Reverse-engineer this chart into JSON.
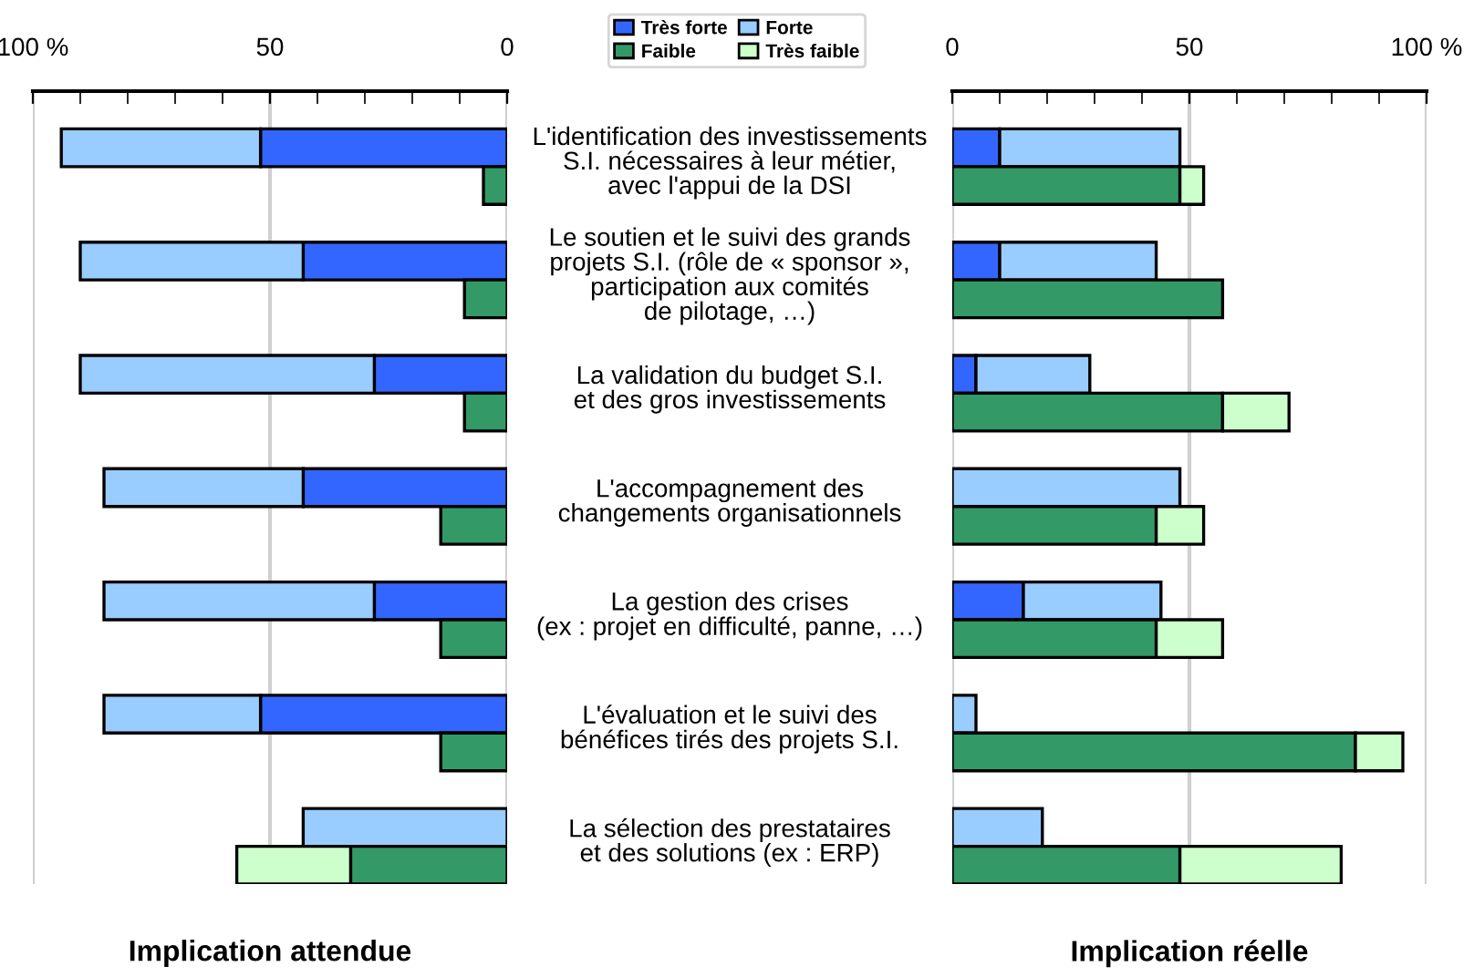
{
  "chart_data": [
    {
      "type": "bar",
      "orientation": "horizontal",
      "stacked": true,
      "xlabel": "Implication attendue",
      "categories": [
        "L'identification des investissements\nS.I. nécessaires à leur métier,\navec l'appui de la DSI",
        null,
        null,
        "Le soutien et le suivi des grands\nprojets S.I. (rôle de « sponsor »,\nparticipation aux comités\nde pilotage, …)",
        null,
        null,
        "La validation du budget S.I.\net des gros investissements",
        null,
        null,
        "L'accompagnement des\nchangements organisationnels",
        null,
        null,
        "La gestion des crises\n(ex : projet en difficulté, panne, …)",
        null,
        null,
        "L'évaluation et le suivi des\nbénéfices tirés des projets S.I.",
        null,
        null,
        "La sélection des prestataires\net des solutions (ex : ERP)",
        null
      ],
      "series": [
        {
          "name": "Très forte",
          "color": "#3366ff",
          "values": [
            52,
            null,
            null,
            43,
            null,
            null,
            28,
            null,
            null,
            43,
            null,
            null,
            28,
            null,
            null,
            52,
            null,
            null,
            null,
            null
          ]
        },
        {
          "name": "Forte",
          "color": "#99ccff",
          "values": [
            42,
            null,
            null,
            47,
            null,
            null,
            62,
            null,
            null,
            42,
            null,
            null,
            57,
            null,
            null,
            33,
            null,
            null,
            43,
            null
          ]
        },
        {
          "name": "Faible",
          "color": "#339966",
          "values": [
            null,
            5,
            null,
            null,
            9,
            null,
            null,
            9,
            null,
            null,
            14,
            null,
            null,
            14,
            null,
            null,
            14,
            null,
            null,
            33
          ]
        },
        {
          "name": "Très faible",
          "color": "#ccffcc",
          "values": [
            null,
            null,
            null,
            null,
            null,
            null,
            null,
            null,
            null,
            null,
            null,
            null,
            null,
            null,
            null,
            null,
            null,
            null,
            null,
            24
          ]
        }
      ],
      "xlim": [
        100,
        0
      ],
      "xticks": [
        {
          "value": 100,
          "label": "100 %"
        },
        50,
        0
      ],
      "grid": "x",
      "legend": "top"
    },
    {
      "type": "bar",
      "orientation": "horizontal",
      "stacked": true,
      "xlabel": "Implication réelle",
      "categories": [
        null,
        null,
        null,
        null,
        null,
        null,
        null,
        null,
        null,
        null,
        null,
        null,
        null,
        null,
        null,
        null,
        null,
        null,
        null,
        null
      ],
      "series": [
        {
          "color": "#3366ff",
          "values": [
            10,
            null,
            null,
            10,
            null,
            null,
            5,
            null,
            null,
            null,
            null,
            null,
            15,
            null,
            null,
            null,
            null,
            null,
            null,
            null
          ]
        },
        {
          "color": "#99ccff",
          "values": [
            38,
            null,
            null,
            33,
            null,
            null,
            24,
            null,
            null,
            48,
            null,
            null,
            29,
            null,
            null,
            5,
            null,
            null,
            19,
            null
          ]
        },
        {
          "color": "#339966",
          "values": [
            null,
            48,
            null,
            null,
            57,
            null,
            null,
            57,
            null,
            null,
            43,
            null,
            null,
            43,
            null,
            null,
            85,
            null,
            null,
            48
          ]
        },
        {
          "color": "#ccffcc",
          "values": [
            null,
            5,
            null,
            null,
            null,
            null,
            null,
            14,
            null,
            null,
            10,
            null,
            null,
            14,
            null,
            null,
            10,
            null,
            null,
            34
          ]
        }
      ],
      "xlim": [
        0,
        100
      ],
      "xticks": [
        0,
        50,
        {
          "value": 100,
          "label": "100 %"
        }
      ],
      "grid": "x"
    }
  ]
}
